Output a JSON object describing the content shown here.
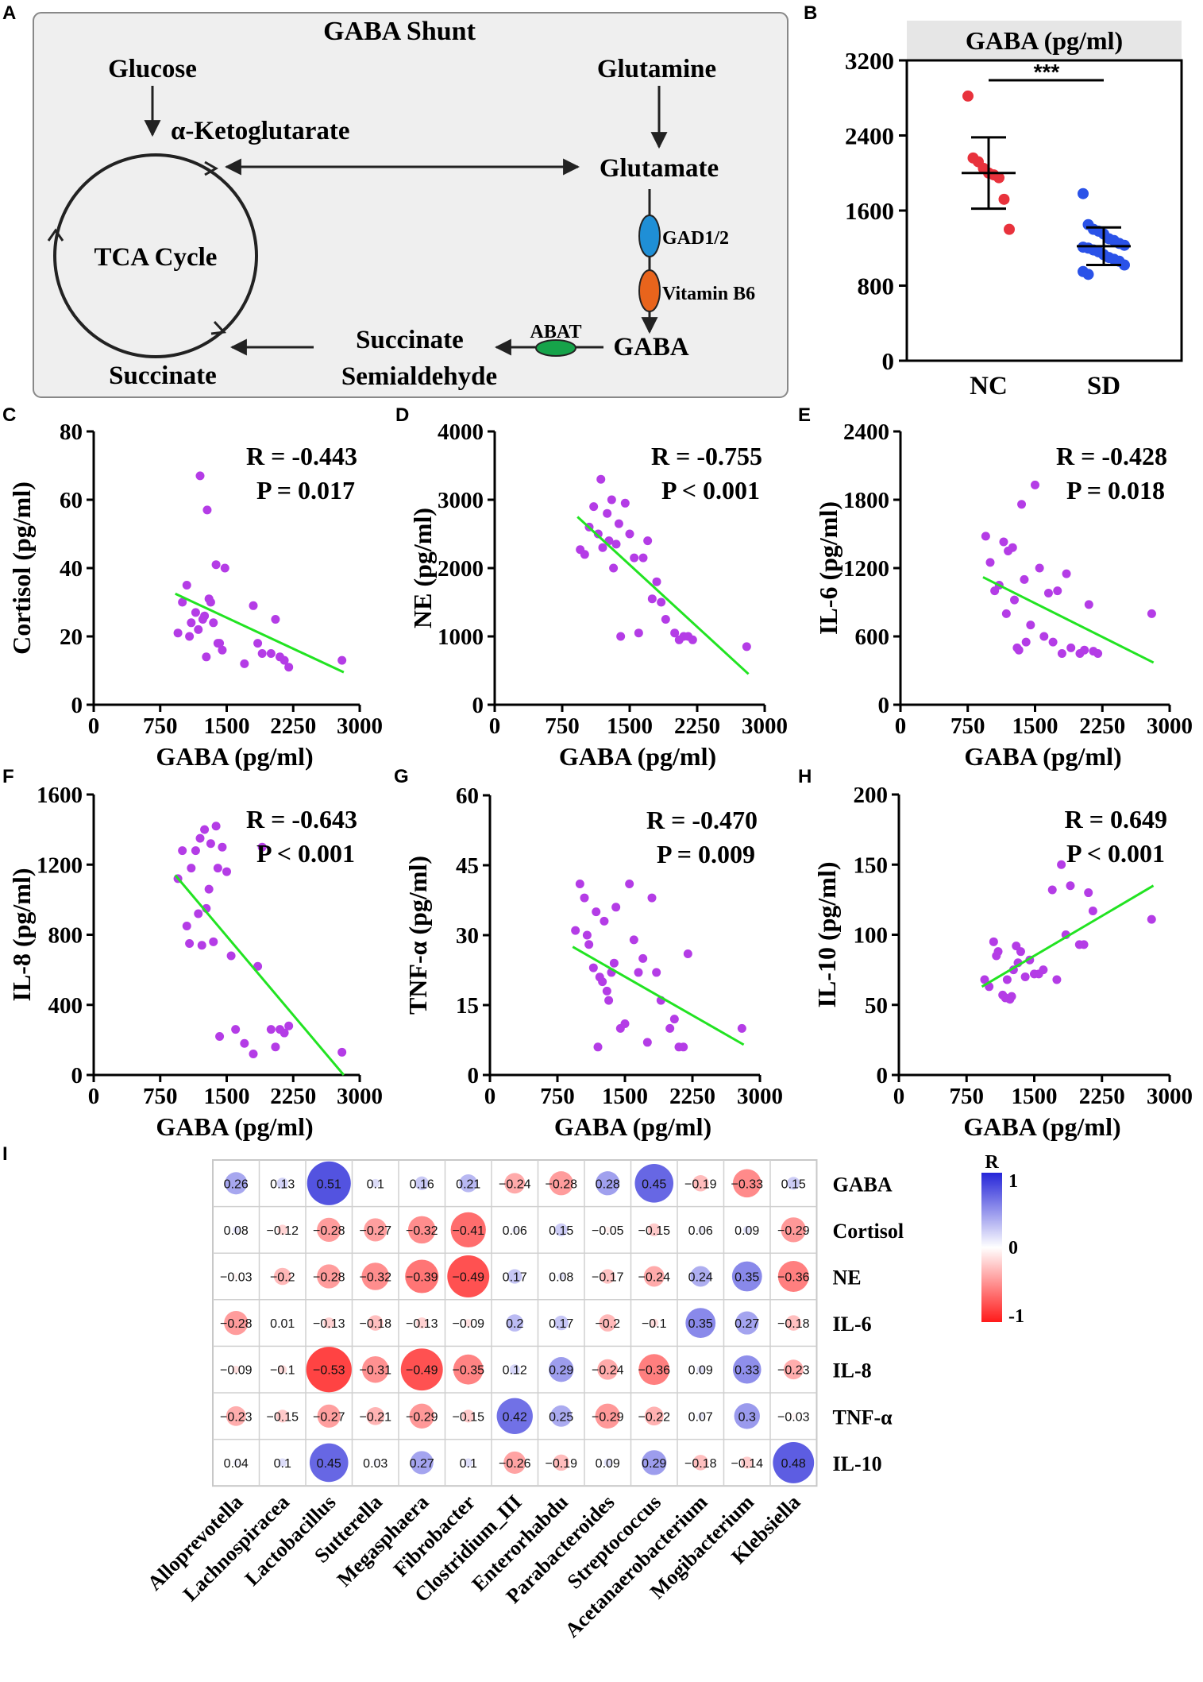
{
  "panel_letters": [
    "A",
    "B",
    "C",
    "D",
    "E",
    "F",
    "G",
    "H",
    "I"
  ],
  "pathway": {
    "title": "GABA Shunt",
    "nodes": {
      "glucose": "Glucose",
      "akg": "α-Ketoglutarate",
      "glutamine": "Glutamine",
      "glutamate": "Glutamate",
      "tca": "TCA Cycle",
      "gad": "GAD1/2",
      "b6": "Vitamin B6",
      "abat": "ABAT",
      "gaba": "GABA",
      "ssa1": "Succinate",
      "ssa2": "Semialdehyde",
      "succinate": "Succinate"
    },
    "colors": {
      "gad": "#1f8fd6",
      "b6": "#e8641c",
      "abat": "#16a34a",
      "box": "#efefef"
    }
  },
  "chart_data": [
    {
      "panel": "B",
      "type": "scatter",
      "title": "GABA (pg/ml)",
      "categories": [
        "NC",
        "SD"
      ],
      "ylim": [
        0,
        3200
      ],
      "yticks": [
        0,
        800,
        1600,
        2400,
        3200
      ],
      "significance": "***",
      "series": [
        {
          "name": "NC",
          "color": "#e8323c",
          "mean": 2000,
          "sd": 380,
          "values": [
            2820,
            2160,
            2120,
            2050,
            2000,
            1980,
            1950,
            1720,
            1400
          ]
        },
        {
          "name": "SD",
          "color": "#2a52e8",
          "mean": 1220,
          "sd": 200,
          "values": [
            1780,
            1450,
            1400,
            1380,
            1350,
            1300,
            1280,
            1250,
            1230,
            1210,
            1200,
            1180,
            1160,
            1130,
            1100,
            1080,
            1060,
            1020,
            950,
            920
          ]
        }
      ]
    },
    {
      "panel": "C",
      "type": "scatter",
      "ylabel": "Cortisol (pg/ml)",
      "xlabel": "GABA (pg/ml)",
      "xlim": [
        0,
        3000
      ],
      "xticks": [
        0,
        750,
        1500,
        2250,
        3000
      ],
      "ylim": [
        0,
        80
      ],
      "yticks": [
        0,
        20,
        40,
        60,
        80
      ],
      "r_text": "R = -0.443",
      "p_text": "P = 0.017",
      "fit": [
        [
          920,
          32.5
        ],
        [
          2820,
          9.5
        ]
      ],
      "points": [
        [
          950,
          21
        ],
        [
          1000,
          30
        ],
        [
          1050,
          35
        ],
        [
          1080,
          20
        ],
        [
          1100,
          24
        ],
        [
          1150,
          27
        ],
        [
          1180,
          22
        ],
        [
          1200,
          67
        ],
        [
          1230,
          25
        ],
        [
          1250,
          26
        ],
        [
          1270,
          14
        ],
        [
          1280,
          57
        ],
        [
          1300,
          31
        ],
        [
          1320,
          30
        ],
        [
          1350,
          24
        ],
        [
          1380,
          41
        ],
        [
          1400,
          18
        ],
        [
          1420,
          18
        ],
        [
          1450,
          16
        ],
        [
          1480,
          40
        ],
        [
          1700,
          12
        ],
        [
          1800,
          29
        ],
        [
          1850,
          18
        ],
        [
          1900,
          15
        ],
        [
          2000,
          15
        ],
        [
          2050,
          25
        ],
        [
          2100,
          14
        ],
        [
          2150,
          13
        ],
        [
          2200,
          11
        ],
        [
          2800,
          13
        ]
      ]
    },
    {
      "panel": "D",
      "type": "scatter",
      "ylabel": "NE (pg/ml)",
      "xlabel": "GABA (pg/ml)",
      "xlim": [
        0,
        3000
      ],
      "xticks": [
        0,
        750,
        1500,
        2250,
        3000
      ],
      "ylim": [
        0,
        4000
      ],
      "yticks": [
        0,
        1000,
        2000,
        3000,
        4000
      ],
      "r_text": "R = -0.755",
      "p_text": "P < 0.001",
      "fit": [
        [
          920,
          2750
        ],
        [
          2820,
          450
        ]
      ],
      "points": [
        [
          950,
          2270
        ],
        [
          1000,
          2200
        ],
        [
          1050,
          2600
        ],
        [
          1100,
          2900
        ],
        [
          1150,
          2500
        ],
        [
          1180,
          3300
        ],
        [
          1200,
          2300
        ],
        [
          1250,
          2800
        ],
        [
          1270,
          2400
        ],
        [
          1300,
          3000
        ],
        [
          1320,
          2000
        ],
        [
          1350,
          2350
        ],
        [
          1380,
          2650
        ],
        [
          1400,
          1000
        ],
        [
          1450,
          2950
        ],
        [
          1500,
          2500
        ],
        [
          1550,
          2150
        ],
        [
          1600,
          1050
        ],
        [
          1650,
          2150
        ],
        [
          1700,
          2400
        ],
        [
          1750,
          1550
        ],
        [
          1800,
          1800
        ],
        [
          1850,
          1500
        ],
        [
          1900,
          1250
        ],
        [
          2000,
          1050
        ],
        [
          2050,
          950
        ],
        [
          2100,
          1000
        ],
        [
          2150,
          1000
        ],
        [
          2200,
          950
        ],
        [
          2800,
          850
        ]
      ]
    },
    {
      "panel": "E",
      "type": "scatter",
      "ylabel": "IL-6 (pg/ml)",
      "xlabel": "GABA (pg/ml)",
      "xlim": [
        0,
        3000
      ],
      "xticks": [
        0,
        750,
        1500,
        2250,
        3000
      ],
      "ylim": [
        0,
        2400
      ],
      "yticks": [
        0,
        600,
        1200,
        1800,
        2400
      ],
      "r_text": "R = -0.428",
      "p_text": "P = 0.018",
      "fit": [
        [
          920,
          1120
        ],
        [
          2820,
          370
        ]
      ],
      "points": [
        [
          950,
          1480
        ],
        [
          1000,
          1250
        ],
        [
          1050,
          1000
        ],
        [
          1100,
          1050
        ],
        [
          1150,
          1430
        ],
        [
          1180,
          800
        ],
        [
          1200,
          1350
        ],
        [
          1250,
          1380
        ],
        [
          1270,
          920
        ],
        [
          1300,
          500
        ],
        [
          1320,
          480
        ],
        [
          1350,
          1760
        ],
        [
          1380,
          1100
        ],
        [
          1400,
          550
        ],
        [
          1450,
          700
        ],
        [
          1500,
          1930
        ],
        [
          1550,
          1200
        ],
        [
          1600,
          600
        ],
        [
          1650,
          980
        ],
        [
          1700,
          550
        ],
        [
          1750,
          1000
        ],
        [
          1800,
          450
        ],
        [
          1850,
          1150
        ],
        [
          1900,
          500
        ],
        [
          2000,
          450
        ],
        [
          2050,
          480
        ],
        [
          2100,
          880
        ],
        [
          2150,
          470
        ],
        [
          2200,
          450
        ],
        [
          2800,
          800
        ]
      ]
    },
    {
      "panel": "F",
      "type": "scatter",
      "ylabel": "IL-8 (pg/ml)",
      "xlabel": "GABA (pg/ml)",
      "xlim": [
        0,
        3000
      ],
      "xticks": [
        0,
        750,
        1500,
        2250,
        3000
      ],
      "ylim": [
        0,
        1600
      ],
      "yticks": [
        0,
        400,
        800,
        1200,
        1600
      ],
      "r_text": "R = -0.643",
      "p_text": "P < 0.001",
      "fit": [
        [
          920,
          1140
        ],
        [
          2820,
          0
        ]
      ],
      "points": [
        [
          950,
          1120
        ],
        [
          1000,
          1280
        ],
        [
          1050,
          850
        ],
        [
          1080,
          750
        ],
        [
          1100,
          1180
        ],
        [
          1150,
          1280
        ],
        [
          1180,
          920
        ],
        [
          1200,
          1350
        ],
        [
          1220,
          740
        ],
        [
          1250,
          1400
        ],
        [
          1270,
          950
        ],
        [
          1300,
          1060
        ],
        [
          1320,
          1320
        ],
        [
          1350,
          760
        ],
        [
          1380,
          1420
        ],
        [
          1400,
          1180
        ],
        [
          1420,
          220
        ],
        [
          1450,
          1300
        ],
        [
          1500,
          1160
        ],
        [
          1550,
          680
        ],
        [
          1600,
          260
        ],
        [
          1700,
          180
        ],
        [
          1800,
          120
        ],
        [
          1850,
          620
        ],
        [
          1900,
          1300
        ],
        [
          2000,
          260
        ],
        [
          2050,
          160
        ],
        [
          2100,
          260
        ],
        [
          2150,
          240
        ],
        [
          2200,
          280
        ],
        [
          2800,
          130
        ]
      ]
    },
    {
      "panel": "G",
      "type": "scatter",
      "ylabel": "TNF-α (pg/ml)",
      "xlabel": "GABA (pg/ml)",
      "xlim": [
        0,
        3000
      ],
      "xticks": [
        0,
        750,
        1500,
        2250,
        3000
      ],
      "ylim": [
        0,
        60
      ],
      "yticks": [
        0,
        15,
        30,
        45,
        60
      ],
      "r_text": "R = -0.470",
      "p_text": "P = 0.009",
      "fit": [
        [
          920,
          27.5
        ],
        [
          2820,
          6.5
        ]
      ],
      "points": [
        [
          950,
          31
        ],
        [
          1000,
          41
        ],
        [
          1050,
          38
        ],
        [
          1080,
          30
        ],
        [
          1100,
          28
        ],
        [
          1150,
          23
        ],
        [
          1180,
          35
        ],
        [
          1200,
          6
        ],
        [
          1220,
          21
        ],
        [
          1250,
          20
        ],
        [
          1270,
          33
        ],
        [
          1300,
          18
        ],
        [
          1320,
          16
        ],
        [
          1350,
          22
        ],
        [
          1380,
          24
        ],
        [
          1400,
          36
        ],
        [
          1450,
          10
        ],
        [
          1500,
          11
        ],
        [
          1550,
          41
        ],
        [
          1600,
          29
        ],
        [
          1650,
          22
        ],
        [
          1700,
          25
        ],
        [
          1750,
          7
        ],
        [
          1800,
          38
        ],
        [
          1850,
          22
        ],
        [
          1900,
          16
        ],
        [
          2000,
          10
        ],
        [
          2050,
          12
        ],
        [
          2100,
          6
        ],
        [
          2150,
          6
        ],
        [
          2200,
          26
        ],
        [
          2800,
          10
        ]
      ]
    },
    {
      "panel": "H",
      "type": "scatter",
      "ylabel": "IL-10 (pg/ml)",
      "xlabel": "GABA (pg/ml)",
      "xlim": [
        0,
        3000
      ],
      "xticks": [
        0,
        750,
        1500,
        2250,
        3000
      ],
      "ylim": [
        0,
        200
      ],
      "yticks": [
        0,
        50,
        100,
        150,
        200
      ],
      "r_text": "R = 0.649",
      "p_text": "P < 0.001",
      "fit": [
        [
          920,
          63
        ],
        [
          2820,
          135
        ]
      ],
      "points": [
        [
          950,
          68
        ],
        [
          1000,
          63
        ],
        [
          1050,
          95
        ],
        [
          1080,
          85
        ],
        [
          1100,
          88
        ],
        [
          1150,
          57
        ],
        [
          1180,
          55
        ],
        [
          1200,
          68
        ],
        [
          1230,
          54
        ],
        [
          1250,
          56
        ],
        [
          1270,
          75
        ],
        [
          1300,
          92
        ],
        [
          1320,
          80
        ],
        [
          1350,
          88
        ],
        [
          1400,
          70
        ],
        [
          1450,
          82
        ],
        [
          1500,
          72
        ],
        [
          1550,
          72
        ],
        [
          1600,
          75
        ],
        [
          1700,
          132
        ],
        [
          1750,
          68
        ],
        [
          1800,
          150
        ],
        [
          1850,
          100
        ],
        [
          1900,
          135
        ],
        [
          2000,
          93
        ],
        [
          2050,
          93
        ],
        [
          2100,
          130
        ],
        [
          2150,
          117
        ],
        [
          2800,
          111
        ]
      ]
    },
    {
      "panel": "I",
      "type": "heatmap",
      "columns": [
        "Alloprevotella",
        "Lachnospiracea",
        "Lactobacillus",
        "Sutterella",
        "Megasphaera",
        "Fibrobacter",
        "Clostridium_III",
        "Enterorhabdu",
        "Parabacteroides",
        "Streptococcus",
        "Acetanaerobacterium",
        "Mogibacterium",
        "Klebsiella"
      ],
      "rows": [
        "GABA",
        "Cortisol",
        "NE",
        "IL-6",
        "IL-8",
        "TNF-α",
        "IL-10"
      ],
      "values": [
        [
          0.26,
          0.13,
          0.51,
          0.1,
          0.16,
          0.21,
          -0.24,
          -0.28,
          0.28,
          0.45,
          -0.19,
          -0.33,
          0.15
        ],
        [
          0.08,
          -0.12,
          -0.28,
          -0.27,
          -0.32,
          -0.41,
          0.06,
          0.15,
          -0.05,
          -0.15,
          0.06,
          0.09,
          -0.29
        ],
        [
          -0.03,
          -0.2,
          -0.28,
          -0.32,
          -0.39,
          -0.49,
          0.17,
          0.08,
          -0.17,
          -0.24,
          0.24,
          0.35,
          -0.36
        ],
        [
          -0.28,
          0.01,
          -0.13,
          -0.18,
          -0.13,
          -0.09,
          0.2,
          0.17,
          -0.2,
          -0.1,
          0.35,
          0.27,
          -0.18
        ],
        [
          -0.09,
          -0.1,
          -0.53,
          -0.31,
          -0.49,
          -0.35,
          0.12,
          0.29,
          -0.24,
          -0.36,
          0.09,
          0.33,
          -0.23
        ],
        [
          -0.23,
          -0.15,
          -0.27,
          -0.21,
          -0.29,
          -0.15,
          0.42,
          0.25,
          -0.29,
          -0.22,
          0.07,
          0.3,
          -0.03
        ],
        [
          0.04,
          0.1,
          0.45,
          0.03,
          0.27,
          0.1,
          -0.26,
          -0.19,
          0.09,
          0.29,
          -0.18,
          -0.14,
          0.48
        ]
      ],
      "legend": {
        "title": "R",
        "ticks": [
          "1",
          "0",
          "-1"
        ],
        "pos_color": "#2525d8",
        "neg_color": "#ff1a1a"
      }
    }
  ]
}
